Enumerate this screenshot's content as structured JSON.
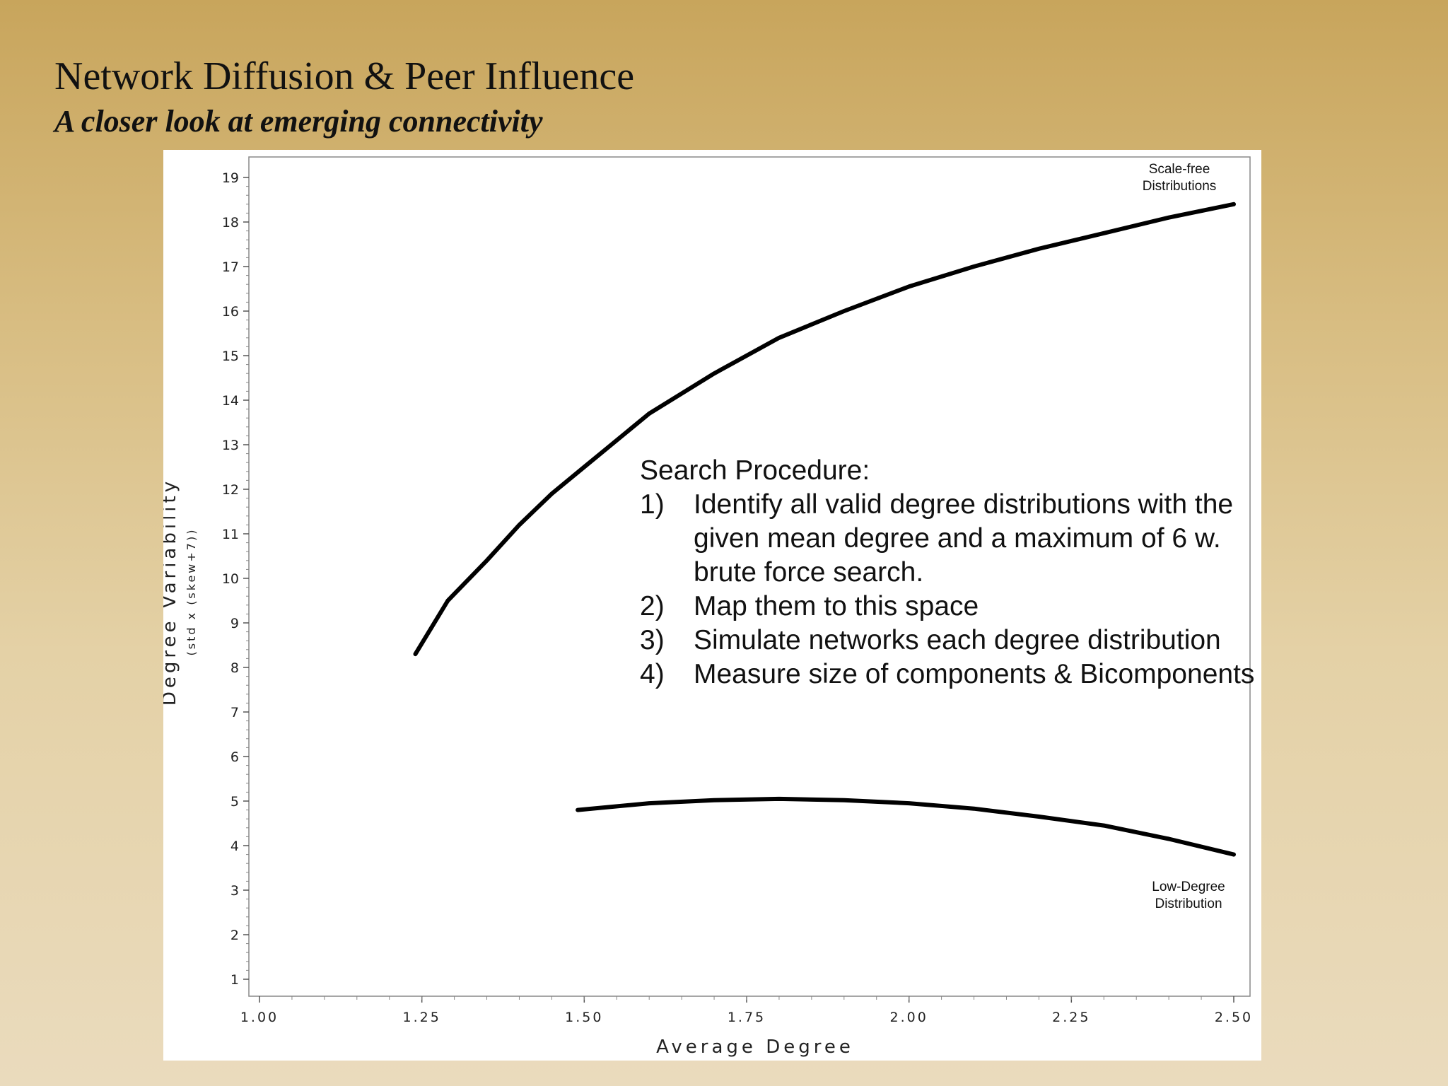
{
  "slide": {
    "title": "Network Diffusion & Peer Influence",
    "subtitle": "A closer look at emerging connectivity"
  },
  "annotation": {
    "heading": "Search Procedure:",
    "steps": [
      {
        "num": "1)",
        "text": "Identify all valid degree distributions with the given mean degree and a maximum of 6 w. brute force search."
      },
      {
        "num": "2)",
        "text": "Map them to this space"
      },
      {
        "num": "3)",
        "text": "Simulate networks each degree distribution"
      },
      {
        "num": "4)",
        "text": "Measure size of components & Bicomponents"
      }
    ]
  },
  "chart_data": {
    "type": "line",
    "title": "",
    "xlabel": "Average Degree",
    "ylabel": "Degree Variability",
    "ylabel_sub": "(std x (skew+7))",
    "xlim": [
      1.0,
      2.5
    ],
    "ylim": [
      1,
      19
    ],
    "x_ticks": [
      "1.00",
      "1.25",
      "1.50",
      "1.75",
      "2.00",
      "2.25",
      "2.50"
    ],
    "y_ticks": [
      "1",
      "2",
      "3",
      "4",
      "5",
      "6",
      "7",
      "8",
      "9",
      "10",
      "11",
      "12",
      "13",
      "14",
      "15",
      "16",
      "17",
      "18",
      "19"
    ],
    "grid": false,
    "series": [
      {
        "name": "Scale-free Distributions",
        "x": [
          1.24,
          1.29,
          1.35,
          1.4,
          1.45,
          1.5,
          1.55,
          1.6,
          1.7,
          1.8,
          1.9,
          2.0,
          2.1,
          2.2,
          2.3,
          2.4,
          2.5
        ],
        "y": [
          8.3,
          9.5,
          10.4,
          11.2,
          11.9,
          12.5,
          13.1,
          13.7,
          14.6,
          15.4,
          16.0,
          16.55,
          17.0,
          17.4,
          17.75,
          18.1,
          18.4
        ]
      },
      {
        "name": "Low-Degree Distribution",
        "x": [
          1.49,
          1.6,
          1.7,
          1.8,
          1.9,
          2.0,
          2.1,
          2.2,
          2.3,
          2.4,
          2.5
        ],
        "y": [
          4.8,
          4.95,
          5.02,
          5.05,
          5.02,
          4.95,
          4.83,
          4.65,
          4.45,
          4.15,
          3.8
        ]
      }
    ],
    "annotations": [
      {
        "lines": [
          "Scale-free",
          "Distributions"
        ],
        "placement": "top-right"
      },
      {
        "lines": [
          "Low-Degree",
          "Distribution"
        ],
        "placement": "bottom-right"
      }
    ]
  }
}
